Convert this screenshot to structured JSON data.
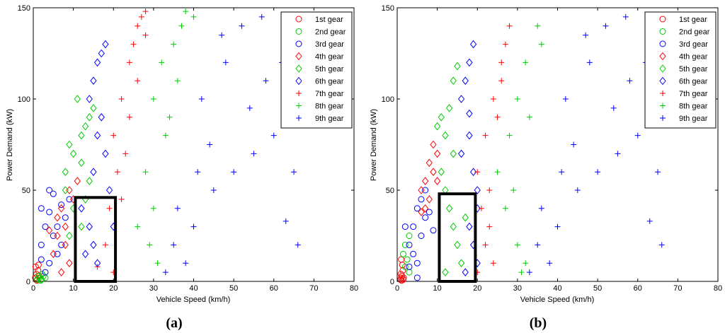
{
  "chart_data": [
    {
      "type": "scatter",
      "panel_label": "(a)",
      "xlabel": "Vehicle Speed (km/h)",
      "ylabel": "Power Demand (kW)",
      "xlim": [
        0,
        80
      ],
      "ylim": [
        0,
        150
      ],
      "xticks": [
        "0",
        "10",
        "20",
        "30",
        "40",
        "50",
        "60",
        "70",
        "80"
      ],
      "yticks": [
        "0",
        "50",
        "100",
        "150"
      ],
      "legend_position": "top-right",
      "highlight_box": {
        "x": [
          10.5,
          20.5
        ],
        "y": [
          0,
          46
        ]
      },
      "series": [
        {
          "name": "1st gear",
          "marker": "circle",
          "color": "#ff0000",
          "points": [
            [
              0.5,
              2
            ],
            [
              0.8,
              4
            ],
            [
              1,
              1
            ],
            [
              1.2,
              6
            ],
            [
              0.6,
              8
            ],
            [
              1.5,
              3
            ],
            [
              0.9,
              0.5
            ],
            [
              1.3,
              9
            ]
          ]
        },
        {
          "name": "2nd gear",
          "marker": "circle",
          "color": "#00cc00",
          "points": [
            [
              1,
              1
            ],
            [
              1.5,
              2
            ],
            [
              2,
              1
            ],
            [
              2.5,
              3
            ],
            [
              1.8,
              0.5
            ],
            [
              3,
              2
            ],
            [
              2.2,
              4
            ],
            [
              1.2,
              3
            ]
          ]
        },
        {
          "name": "3rd gear",
          "marker": "circle",
          "color": "#0000ff",
          "points": [
            [
              2,
              20
            ],
            [
              3,
              30
            ],
            [
              4,
              38
            ],
            [
              5,
              48
            ],
            [
              2,
              40
            ],
            [
              4,
              10
            ],
            [
              6,
              30
            ],
            [
              3,
              5
            ],
            [
              7,
              42
            ],
            [
              5,
              25
            ],
            [
              8,
              35
            ],
            [
              6,
              15
            ],
            [
              9,
              45
            ],
            [
              2,
              12
            ],
            [
              4,
              50
            ],
            [
              7,
              20
            ]
          ]
        },
        {
          "name": "4th gear",
          "marker": "diamond",
          "color": "#ff0000",
          "points": [
            [
              5,
              15
            ],
            [
              6,
              25
            ],
            [
              7,
              40
            ],
            [
              8,
              30
            ],
            [
              9,
              50
            ],
            [
              7,
              5
            ],
            [
              10,
              45
            ],
            [
              6,
              35
            ],
            [
              11,
              55
            ],
            [
              8,
              20
            ],
            [
              4,
              28
            ],
            [
              9,
              10
            ]
          ]
        },
        {
          "name": "5th gear",
          "marker": "diamond",
          "color": "#00cc00",
          "points": [
            [
              8,
              60
            ],
            [
              10,
              70
            ],
            [
              12,
              80
            ],
            [
              14,
              90
            ],
            [
              9,
              75
            ],
            [
              11,
              100
            ],
            [
              13,
              85
            ],
            [
              10,
              40
            ],
            [
              12,
              65
            ],
            [
              8,
              50
            ],
            [
              15,
              95
            ],
            [
              12,
              30
            ],
            [
              14,
              55
            ],
            [
              9,
              25
            ],
            [
              13,
              45
            ]
          ]
        },
        {
          "name": "6th gear",
          "marker": "diamond",
          "color": "#0000ff",
          "points": [
            [
              14,
              100
            ],
            [
              15,
              110
            ],
            [
              16,
              120
            ],
            [
              17,
              125
            ],
            [
              18,
              130
            ],
            [
              15,
              60
            ],
            [
              16,
              80
            ],
            [
              17,
              90
            ],
            [
              14,
              30
            ],
            [
              15,
              20
            ],
            [
              18,
              70
            ],
            [
              19,
              50
            ],
            [
              12,
              40
            ],
            [
              13,
              15
            ],
            [
              16,
              10
            ],
            [
              20,
              30
            ]
          ]
        },
        {
          "name": "7th gear",
          "marker": "plus",
          "color": "#ff0000",
          "points": [
            [
              22,
              100
            ],
            [
              24,
              120
            ],
            [
              25,
              130
            ],
            [
              26,
              140
            ],
            [
              27,
              145
            ],
            [
              28,
              148
            ],
            [
              20,
              80
            ],
            [
              21,
              60
            ],
            [
              23,
              70
            ],
            [
              19,
              40
            ],
            [
              22,
              45
            ],
            [
              18,
              20
            ],
            [
              24,
              90
            ],
            [
              26,
              110
            ],
            [
              16,
              8
            ],
            [
              20,
              5
            ],
            [
              28,
              135
            ]
          ]
        },
        {
          "name": "8th gear",
          "marker": "plus",
          "color": "#00cc00",
          "points": [
            [
              30,
              100
            ],
            [
              32,
              120
            ],
            [
              35,
              130
            ],
            [
              37,
              140
            ],
            [
              38,
              148
            ],
            [
              28,
              60
            ],
            [
              30,
              40
            ],
            [
              33,
              80
            ],
            [
              26,
              30
            ],
            [
              34,
              90
            ],
            [
              29,
              20
            ],
            [
              36,
              110
            ],
            [
              31,
              10
            ],
            [
              40,
              145
            ]
          ]
        },
        {
          "name": "9th gear",
          "marker": "plus",
          "color": "#0000ff",
          "points": [
            [
              35,
              20
            ],
            [
              40,
              30
            ],
            [
              45,
              50
            ],
            [
              50,
              60
            ],
            [
              55,
              70
            ],
            [
              60,
              80
            ],
            [
              38,
              10
            ],
            [
              42,
              100
            ],
            [
              48,
              120
            ],
            [
              52,
              140
            ],
            [
              58,
              110
            ],
            [
              62,
              120
            ],
            [
              65,
              60
            ],
            [
              63,
              33
            ],
            [
              66,
              20
            ],
            [
              33,
              5
            ],
            [
              44,
              75
            ],
            [
              36,
              40
            ],
            [
              54,
              95
            ],
            [
              47,
              135
            ],
            [
              57,
              145
            ],
            [
              41,
              60
            ]
          ]
        }
      ]
    },
    {
      "type": "scatter",
      "panel_label": "(b)",
      "xlabel": "Vehicle Speed (km/h)",
      "ylabel": "Power Demand (kW)",
      "xlim": [
        0,
        80
      ],
      "ylim": [
        0,
        150
      ],
      "xticks": [
        "0",
        "10",
        "20",
        "30",
        "40",
        "50",
        "60",
        "70",
        "80"
      ],
      "yticks": [
        "0",
        "50",
        "100",
        "150"
      ],
      "legend_position": "top-right",
      "highlight_box": {
        "x": [
          10.5,
          19.5
        ],
        "y": [
          0,
          48
        ]
      },
      "series": [
        {
          "name": "1st gear",
          "marker": "circle",
          "color": "#ff0000",
          "points": [
            [
              0.8,
              1
            ],
            [
              1,
              2
            ],
            [
              1.2,
              3
            ],
            [
              1.5,
              1
            ],
            [
              1.1,
              0.5
            ],
            [
              0.9,
              4
            ],
            [
              1.4,
              6
            ],
            [
              1.3,
              9
            ],
            [
              1,
              12
            ],
            [
              1.6,
              2
            ]
          ]
        },
        {
          "name": "2nd gear",
          "marker": "circle",
          "color": "#00cc00",
          "points": [
            [
              1.5,
              15
            ],
            [
              2,
              20
            ],
            [
              2.5,
              12
            ],
            [
              3,
              25
            ],
            [
              2,
              8
            ],
            [
              3,
              5
            ]
          ]
        },
        {
          "name": "3rd gear",
          "marker": "circle",
          "color": "#0000ff",
          "points": [
            [
              3,
              20
            ],
            [
              4,
              30
            ],
            [
              5,
              40
            ],
            [
              6,
              45
            ],
            [
              7,
              35
            ],
            [
              5,
              10
            ],
            [
              4,
              15
            ],
            [
              6,
              25
            ],
            [
              8,
              38
            ],
            [
              3,
              8
            ],
            [
              7,
              50
            ],
            [
              5,
              2
            ],
            [
              9,
              28
            ],
            [
              2,
              30
            ]
          ]
        },
        {
          "name": "4th gear",
          "marker": "diamond",
          "color": "#ff0000",
          "points": [
            [
              6,
              50
            ],
            [
              7,
              55
            ],
            [
              8,
              65
            ],
            [
              9,
              60
            ],
            [
              10,
              70
            ],
            [
              8,
              45
            ],
            [
              7,
              40
            ],
            [
              9,
              75
            ],
            [
              10,
              55
            ],
            [
              6,
              38
            ]
          ]
        },
        {
          "name": "5th gear",
          "marker": "diamond",
          "color": "#00cc00",
          "points": [
            [
              10,
              85
            ],
            [
              11,
              90
            ],
            [
              12,
              80
            ],
            [
              13,
              95
            ],
            [
              14,
              110
            ],
            [
              15,
              118
            ],
            [
              11,
              60
            ],
            [
              12,
              50
            ],
            [
              13,
              40
            ],
            [
              14,
              30
            ],
            [
              15,
              20
            ],
            [
              16,
              10
            ],
            [
              12,
              5
            ],
            [
              14,
              70
            ],
            [
              17,
              35
            ]
          ]
        },
        {
          "name": "6th gear",
          "marker": "diamond",
          "color": "#0000ff",
          "points": [
            [
              16,
              100
            ],
            [
              17,
              110
            ],
            [
              18,
              120
            ],
            [
              19,
              130
            ],
            [
              18,
              80
            ],
            [
              19,
              60
            ],
            [
              20,
              40
            ],
            [
              18,
              30
            ],
            [
              19,
              20
            ],
            [
              20,
              10
            ],
            [
              17,
              5
            ],
            [
              20,
              50
            ],
            [
              18,
              92
            ],
            [
              16,
              70
            ]
          ]
        },
        {
          "name": "7th gear",
          "marker": "plus",
          "color": "#ff0000",
          "points": [
            [
              20,
              60
            ],
            [
              22,
              80
            ],
            [
              24,
              100
            ],
            [
              26,
              120
            ],
            [
              28,
              140
            ],
            [
              21,
              40
            ],
            [
              23,
              50
            ],
            [
              22,
              20
            ],
            [
              24,
              10
            ],
            [
              25,
              90
            ],
            [
              27,
              130
            ],
            [
              20,
              5
            ],
            [
              23,
              30
            ],
            [
              26,
              110
            ]
          ]
        },
        {
          "name": "8th gear",
          "marker": "plus",
          "color": "#00cc00",
          "points": [
            [
              25,
              60
            ],
            [
              28,
              80
            ],
            [
              30,
              100
            ],
            [
              32,
              120
            ],
            [
              35,
              140
            ],
            [
              27,
              40
            ],
            [
              30,
              20
            ],
            [
              32,
              10
            ],
            [
              29,
              50
            ],
            [
              33,
              90
            ],
            [
              36,
              130
            ],
            [
              31,
              5
            ]
          ]
        },
        {
          "name": "9th gear",
          "marker": "plus",
          "color": "#0000ff",
          "points": [
            [
              35,
              20
            ],
            [
              40,
              30
            ],
            [
              45,
              50
            ],
            [
              50,
              60
            ],
            [
              55,
              70
            ],
            [
              60,
              80
            ],
            [
              38,
              10
            ],
            [
              42,
              100
            ],
            [
              48,
              120
            ],
            [
              52,
              140
            ],
            [
              58,
              110
            ],
            [
              62,
              120
            ],
            [
              65,
              60
            ],
            [
              63,
              33
            ],
            [
              66,
              20
            ],
            [
              33,
              5
            ],
            [
              44,
              75
            ],
            [
              36,
              40
            ],
            [
              54,
              95
            ],
            [
              47,
              135
            ],
            [
              57,
              145
            ],
            [
              41,
              60
            ]
          ]
        }
      ]
    }
  ]
}
